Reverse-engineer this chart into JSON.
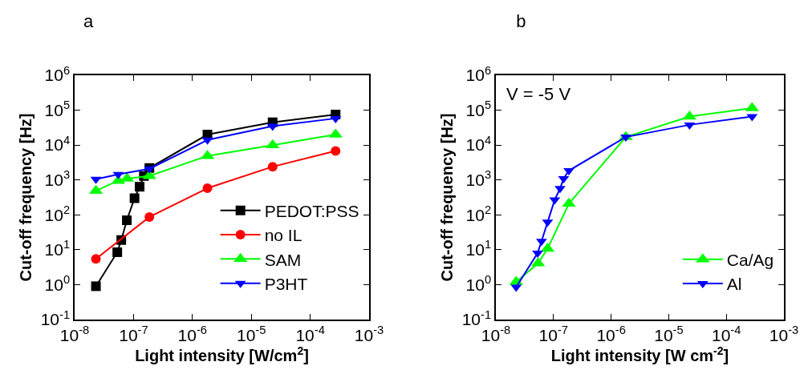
{
  "chart_data": [
    {
      "type": "line",
      "title": "a",
      "xlabel": "Light intensity [W/cm$^{2}$]",
      "ylabel": "Cut-off frequency [Hz]",
      "log": "xy",
      "grid": false,
      "legend": "bottom right",
      "line_style": "solid",
      "xlim": [
        1e-08,
        0.001
      ],
      "xticks": [
        {
          "value": 1e-08,
          "label": "10$^{-8}$"
        },
        {
          "value": 1e-07,
          "label": "10$^{-7}$"
        },
        {
          "value": 1e-06,
          "label": "10$^{-6}$"
        },
        {
          "value": 1e-05,
          "label": "10$^{-5}$"
        },
        {
          "value": 0.0001,
          "label": "10$^{-4}$"
        },
        {
          "value": 0.001,
          "label": "10$^{-3}$"
        }
      ],
      "ylim": [
        0.1,
        1000000
      ],
      "yticks": [
        {
          "value": 0.1,
          "label": "10$^{-1}$"
        },
        {
          "value": 1,
          "label": "10$^{0}$"
        },
        {
          "value": 10,
          "label": "10$^{1}$"
        },
        {
          "value": 100,
          "label": "10$^{2}$"
        },
        {
          "value": 1000,
          "label": "10$^{3}$"
        },
        {
          "value": 10000,
          "label": "10$^{4}$"
        },
        {
          "value": 100000,
          "label": "10$^{5}$"
        },
        {
          "value": 1000000,
          "label": "10$^{6}$"
        }
      ],
      "series": [
        {
          "name": "PEDOT:PSS",
          "color": "#000000",
          "marker": "square",
          "x": [
            2.3e-08,
            5.3e-08,
            6.2e-08,
            7.7e-08,
            1.04e-07,
            1.27e-07,
            1.5e-07,
            1.86e-07,
            1.8e-06,
            2.3e-05,
            0.00027
          ],
          "values": [
            0.9,
            8.5,
            19,
            70,
            300,
            640,
            1300,
            2200,
            20000,
            45000,
            75000
          ]
        },
        {
          "name": "no IL",
          "color": "#ff0000",
          "marker": "circle",
          "x": [
            2.3e-08,
            1.86e-07,
            1.8e-06,
            2.3e-05,
            0.00027
          ],
          "values": [
            5.5,
            87,
            580,
            2400,
            6800
          ]
        },
        {
          "name": "SAM",
          "color": "#00ff00",
          "marker": "triangle",
          "x": [
            2.3e-08,
            5.5e-08,
            7.8e-08,
            1.86e-07,
            1.8e-06,
            2.3e-05,
            0.00027
          ],
          "values": [
            490,
            950,
            1100,
            1300,
            4900,
            10000,
            20000
          ]
        },
        {
          "name": "P3HT",
          "color": "#0000ff",
          "marker": "triangle-down",
          "x": [
            2.3e-08,
            5.5e-08,
            1.86e-07,
            1.8e-06,
            2.3e-05,
            0.00027
          ],
          "values": [
            1050,
            1450,
            2100,
            14000,
            35000,
            58000
          ]
        }
      ]
    },
    {
      "type": "line",
      "title": "b",
      "xlabel": "Light intensity [W cm$^{-2}$]",
      "ylabel": "Cut-off frequency [Hz]",
      "log": "xy",
      "grid": false,
      "legend": "bottom right",
      "line_style": "solid",
      "annotations": [
        "V = -5 V"
      ],
      "xlim": [
        1e-08,
        0.001
      ],
      "xticks": [
        {
          "value": 1e-08,
          "label": "10$^{-8}$"
        },
        {
          "value": 1e-07,
          "label": "10$^{-7}$"
        },
        {
          "value": 1e-06,
          "label": "10$^{-6}$"
        },
        {
          "value": 1e-05,
          "label": "10$^{-5}$"
        },
        {
          "value": 0.0001,
          "label": "10$^{-4}$"
        },
        {
          "value": 0.001,
          "label": "10$^{-3}$"
        }
      ],
      "ylim": [
        0.1,
        1000000
      ],
      "yticks": [
        {
          "value": 0.1,
          "label": "10$^{-1}$"
        },
        {
          "value": 1,
          "label": "10$^{0}$"
        },
        {
          "value": 10,
          "label": "10$^{1}$"
        },
        {
          "value": 100,
          "label": "10$^{2}$"
        },
        {
          "value": 1000,
          "label": "10$^{3}$"
        },
        {
          "value": 10000,
          "label": "10$^{4}$"
        },
        {
          "value": 100000,
          "label": "10$^{5}$"
        },
        {
          "value": 1000000,
          "label": "10$^{6}$"
        }
      ],
      "series": [
        {
          "name": "Ca/Ag",
          "color": "#00ff00",
          "marker": "triangle",
          "x": [
            2.25e-08,
            5.4e-08,
            7.9e-08,
            1.85e-07,
            1.8e-06,
            2.3e-05,
            0.00028
          ],
          "values": [
            1.2,
            4.1,
            10.7,
            210,
            17000,
            66000,
            115000
          ]
        },
        {
          "name": "Al",
          "color": "#0000ff",
          "marker": "triangle-down",
          "x": [
            2.25e-08,
            5.3e-08,
            6.2e-08,
            7.9e-08,
            1.05e-07,
            1.3e-07,
            1.5e-07,
            1.85e-07,
            1.8e-06,
            2.3e-05,
            0.00028
          ],
          "values": [
            0.85,
            8,
            17.5,
            62,
            270,
            570,
            1100,
            1850,
            17000,
            38000,
            66000
          ]
        }
      ]
    }
  ]
}
